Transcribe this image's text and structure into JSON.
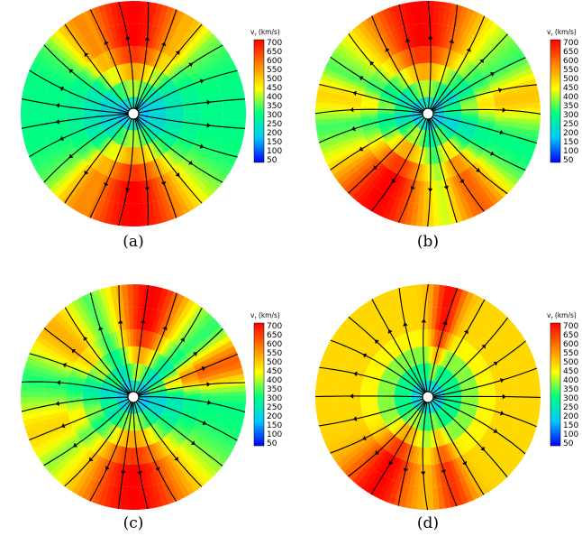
{
  "colormap": [
    "#0000ff",
    "#00c8ff",
    "#00ff80",
    "#ffff00",
    "#ff8000",
    "#ff0000"
  ],
  "streamline_color": "#000000",
  "colorbar": {
    "title": "v",
    "title_sub": "r",
    "title_unit": " (km/s)",
    "ticks": [
      "700",
      "650",
      "600",
      "550",
      "500",
      "450",
      "400",
      "350",
      "300",
      "250",
      "200",
      "150",
      "100",
      "50"
    ]
  },
  "panels": [
    {
      "label": "(a)",
      "fast_lobes": [
        {
          "center_deg": 90,
          "half_width_deg": 40,
          "peak_kms": 700
        },
        {
          "center_deg": 270,
          "half_width_deg": 42,
          "peak_kms": 700
        },
        {
          "center_deg": 120,
          "half_width_deg": 20,
          "peak_kms": 560
        },
        {
          "center_deg": 60,
          "half_width_deg": 18,
          "peak_kms": 520
        },
        {
          "center_deg": 240,
          "half_width_deg": 20,
          "peak_kms": 560
        }
      ],
      "slow_floor_kms": 300
    },
    {
      "label": "(b)",
      "fast_lobes": [
        {
          "center_deg": 95,
          "half_width_deg": 45,
          "peak_kms": 700
        },
        {
          "center_deg": 240,
          "half_width_deg": 38,
          "peak_kms": 700
        },
        {
          "center_deg": 300,
          "half_width_deg": 22,
          "peak_kms": 600
        },
        {
          "center_deg": 10,
          "half_width_deg": 18,
          "peak_kms": 500
        },
        {
          "center_deg": 170,
          "half_width_deg": 15,
          "peak_kms": 480
        }
      ],
      "slow_floor_kms": 300
    },
    {
      "label": "(c)",
      "fast_lobes": [
        {
          "center_deg": 80,
          "half_width_deg": 26,
          "peak_kms": 700
        },
        {
          "center_deg": 270,
          "half_width_deg": 45,
          "peak_kms": 700
        },
        {
          "center_deg": 20,
          "half_width_deg": 15,
          "peak_kms": 600
        },
        {
          "center_deg": 140,
          "half_width_deg": 22,
          "peak_kms": 520
        },
        {
          "center_deg": 200,
          "half_width_deg": 22,
          "peak_kms": 480
        }
      ],
      "slow_floor_kms": 300
    },
    {
      "label": "(d)",
      "fast_lobes": [
        {
          "center_deg": 78,
          "half_width_deg": 10,
          "peak_kms": 690
        },
        {
          "center_deg": 240,
          "half_width_deg": 22,
          "peak_kms": 700
        },
        {
          "center_deg": 285,
          "half_width_deg": 12,
          "peak_kms": 650
        }
      ],
      "slow_floor_kms": 480
    }
  ]
}
